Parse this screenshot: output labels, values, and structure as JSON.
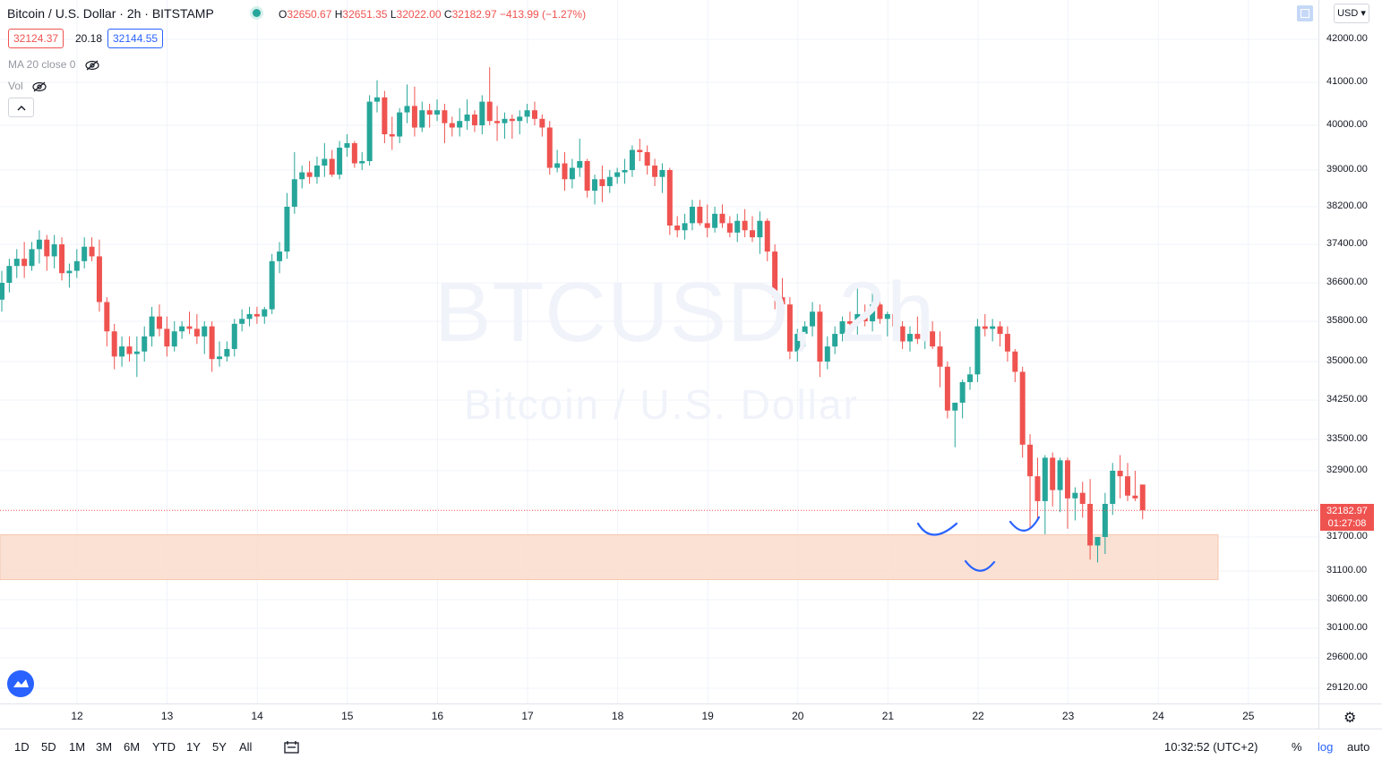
{
  "header": {
    "title": "Bitcoin / U.S. Dollar · 2h · BITSTAMP",
    "ohlc": {
      "o_label": "O",
      "o": "32650.67",
      "h_label": "H",
      "h": "32651.35",
      "l_label": "L",
      "l": "32022.00",
      "c_label": "C",
      "c": "32182.97",
      "change": "−413.99 (−1.27%)"
    },
    "bid": "32124.37",
    "spread": "20.18",
    "ask": "32144.55",
    "indicator_ma": "MA 20 close 0",
    "indicator_vol": "Vol",
    "collapse_icon": "chevron-up-icon",
    "currency": "USD"
  },
  "watermark": {
    "symbol": "BTCUSD, 2h",
    "name": "Bitcoin / U.S. Dollar"
  },
  "bottom_bar": {
    "ranges": [
      "1D",
      "5D",
      "1M",
      "3M",
      "6M",
      "YTD",
      "1Y",
      "5Y",
      "All"
    ],
    "clock": "10:32:52 (UTC+2)",
    "percent": "%",
    "log": "log",
    "auto": "auto"
  },
  "colors": {
    "up": "#26a69a",
    "down": "#ef5350",
    "zone": "#f9dccb",
    "annotation": "#2962ff",
    "accent": "#2962ff"
  },
  "chart_data": {
    "type": "candlestick",
    "symbol": "BTCUSD",
    "interval": "2h",
    "y_ticks": [
      42000,
      41000,
      40000,
      39000,
      38200,
      37400,
      36600,
      35800,
      35000,
      34250,
      33500,
      32900,
      31700,
      31100,
      30600,
      30100,
      29600,
      29120
    ],
    "y_tick_labels": [
      "42000.00",
      "41000.00",
      "40000.00",
      "39000.00",
      "38200.00",
      "37400.00",
      "36600.00",
      "35800.00",
      "35000.00",
      "34250.00",
      "33500.00",
      "32900.00",
      "31700.00",
      "31100.00",
      "30600.00",
      "30100.00",
      "29600.00",
      "29120.00"
    ],
    "x_tick_labels": [
      "12",
      "13",
      "14",
      "15",
      "16",
      "17",
      "18",
      "19",
      "20",
      "21",
      "22",
      "23",
      "24",
      "25"
    ],
    "current_price": "32182.97",
    "countdown": "01:27:08",
    "support_zone": [
      30950,
      31740
    ],
    "candles": [
      [
        36250,
        36850,
        36000,
        36600
      ],
      [
        36600,
        37100,
        36400,
        36950
      ],
      [
        36950,
        37300,
        36700,
        37100
      ],
      [
        37100,
        37450,
        36700,
        36950
      ],
      [
        36950,
        37450,
        36850,
        37300
      ],
      [
        37300,
        37700,
        37000,
        37500
      ],
      [
        37500,
        37600,
        36850,
        37150
      ],
      [
        37150,
        37600,
        36900,
        37400
      ],
      [
        37400,
        37550,
        36650,
        36800
      ],
      [
        36800,
        37000,
        36500,
        36850
      ],
      [
        36850,
        37300,
        36700,
        37050
      ],
      [
        37050,
        37550,
        36900,
        37350
      ],
      [
        37350,
        37550,
        37050,
        37150
      ],
      [
        37150,
        37500,
        36000,
        36200
      ],
      [
        36200,
        36300,
        35300,
        35600
      ],
      [
        35600,
        35750,
        34850,
        35100
      ],
      [
        35100,
        35500,
        34900,
        35300
      ],
      [
        35300,
        35500,
        35000,
        35150
      ],
      [
        35150,
        35500,
        34700,
        35200
      ],
      [
        35200,
        35700,
        35000,
        35500
      ],
      [
        35500,
        36100,
        35300,
        35900
      ],
      [
        35900,
        36150,
        35500,
        35650
      ],
      [
        35650,
        35900,
        35100,
        35300
      ],
      [
        35300,
        35800,
        35200,
        35600
      ],
      [
        35600,
        35800,
        35450,
        35700
      ],
      [
        35700,
        36000,
        35550,
        35650
      ],
      [
        35650,
        35950,
        35350,
        35500
      ],
      [
        35500,
        35800,
        35150,
        35700
      ],
      [
        35700,
        35800,
        34800,
        35050
      ],
      [
        35050,
        35400,
        34900,
        35100
      ],
      [
        35100,
        35400,
        35000,
        35250
      ],
      [
        35250,
        35850,
        35100,
        35750
      ],
      [
        35750,
        36050,
        35600,
        35850
      ],
      [
        35850,
        36100,
        35700,
        35950
      ],
      [
        35950,
        36100,
        35750,
        35900
      ],
      [
        35900,
        36100,
        35750,
        36050
      ],
      [
        36050,
        37200,
        35950,
        37050
      ],
      [
        37050,
        37450,
        36800,
        37250
      ],
      [
        37250,
        38500,
        37100,
        38200
      ],
      [
        38200,
        39400,
        38050,
        38800
      ],
      [
        38800,
        39100,
        38600,
        38950
      ],
      [
        38950,
        39200,
        38700,
        38850
      ],
      [
        38850,
        39300,
        38700,
        39100
      ],
      [
        39100,
        39600,
        38850,
        39250
      ],
      [
        39250,
        39450,
        38850,
        38900
      ],
      [
        38900,
        39650,
        38800,
        39500
      ],
      [
        39500,
        39800,
        39300,
        39600
      ],
      [
        39600,
        39650,
        39050,
        39150
      ],
      [
        39150,
        39400,
        39000,
        39200
      ],
      [
        39200,
        40700,
        39100,
        40550
      ],
      [
        40550,
        41050,
        40300,
        40650
      ],
      [
        40650,
        40800,
        39600,
        39800
      ],
      [
        39800,
        40200,
        39450,
        39750
      ],
      [
        39750,
        40400,
        39600,
        40300
      ],
      [
        40300,
        40950,
        40050,
        40450
      ],
      [
        40450,
        40900,
        39750,
        39950
      ],
      [
        39950,
        40550,
        39850,
        40350
      ],
      [
        40350,
        40500,
        39950,
        40250
      ],
      [
        40250,
        40600,
        40100,
        40350
      ],
      [
        40350,
        40500,
        39600,
        40050
      ],
      [
        40050,
        40200,
        39750,
        39950
      ],
      [
        39950,
        40400,
        39750,
        40100
      ],
      [
        40100,
        40600,
        39900,
        40250
      ],
      [
        40250,
        40350,
        39850,
        40000
      ],
      [
        40000,
        40700,
        39800,
        40550
      ],
      [
        40550,
        41350,
        40000,
        40100
      ],
      [
        40100,
        40450,
        39650,
        40050
      ],
      [
        40050,
        40300,
        39700,
        40150
      ],
      [
        40150,
        40250,
        39700,
        40100
      ],
      [
        40100,
        40350,
        39800,
        40200
      ],
      [
        40200,
        40500,
        40050,
        40350
      ],
      [
        40350,
        40550,
        40000,
        40150
      ],
      [
        40150,
        40250,
        39750,
        39950
      ],
      [
        39950,
        40100,
        38900,
        39050
      ],
      [
        39050,
        39450,
        38950,
        39150
      ],
      [
        39150,
        39400,
        38550,
        38800
      ],
      [
        38800,
        39250,
        38600,
        39050
      ],
      [
        39050,
        39700,
        38850,
        39200
      ],
      [
        39200,
        39250,
        38400,
        38550
      ],
      [
        38550,
        38900,
        38250,
        38800
      ],
      [
        38800,
        39100,
        38300,
        38650
      ],
      [
        38650,
        39000,
        38500,
        38850
      ],
      [
        38850,
        39050,
        38700,
        38950
      ],
      [
        38950,
        39250,
        38700,
        39000
      ],
      [
        39000,
        39550,
        38850,
        39450
      ],
      [
        39450,
        39700,
        39200,
        39400
      ],
      [
        39400,
        39550,
        38900,
        39100
      ],
      [
        39100,
        39250,
        38650,
        38850
      ],
      [
        38850,
        39150,
        38500,
        39000
      ],
      [
        39000,
        39050,
        37600,
        37800
      ],
      [
        37800,
        38000,
        37550,
        37700
      ],
      [
        37700,
        38050,
        37500,
        37850
      ],
      [
        37850,
        38350,
        37700,
        38200
      ],
      [
        38200,
        38350,
        37800,
        37850
      ],
      [
        37850,
        38250,
        37550,
        37750
      ],
      [
        37750,
        38200,
        37650,
        38050
      ],
      [
        38050,
        38250,
        37750,
        37850
      ],
      [
        37850,
        38000,
        37550,
        37650
      ],
      [
        37650,
        38050,
        37450,
        37900
      ],
      [
        37900,
        38150,
        37550,
        37700
      ],
      [
        37700,
        38000,
        37450,
        37550
      ],
      [
        37550,
        38100,
        37200,
        37900
      ],
      [
        37900,
        37950,
        37050,
        37250
      ],
      [
        37250,
        37400,
        36050,
        36300
      ],
      [
        36300,
        36700,
        36100,
        36150
      ],
      [
        36150,
        36300,
        35050,
        35200
      ],
      [
        35200,
        35650,
        35000,
        35550
      ],
      [
        35550,
        35800,
        35300,
        35700
      ],
      [
        35700,
        36200,
        35500,
        36000
      ],
      [
        36000,
        36150,
        34700,
        35000
      ],
      [
        35000,
        35500,
        34850,
        35300
      ],
      [
        35300,
        35700,
        35150,
        35550
      ],
      [
        35550,
        35900,
        35400,
        35800
      ],
      [
        35800,
        36000,
        35600,
        35750
      ],
      [
        35750,
        36500,
        35500,
        35950
      ],
      [
        35950,
        36150,
        35700,
        35800
      ],
      [
        35800,
        36450,
        35600,
        36150
      ],
      [
        36150,
        36300,
        35750,
        35850
      ],
      [
        35850,
        36000,
        35500,
        35950
      ],
      [
        35950,
        36100,
        35550,
        35700
      ],
      [
        35700,
        35800,
        35250,
        35400
      ],
      [
        35400,
        35700,
        35200,
        35550
      ],
      [
        35550,
        35900,
        35350,
        35450
      ],
      [
        35450,
        35700,
        35250,
        35600
      ],
      [
        35600,
        35800,
        35250,
        35300
      ],
      [
        35300,
        35600,
        34500,
        34900
      ],
      [
        34900,
        35000,
        33900,
        34050
      ],
      [
        34050,
        34200,
        33350,
        34200
      ],
      [
        34200,
        34650,
        33900,
        34600
      ],
      [
        34600,
        34900,
        34450,
        34750
      ],
      [
        34750,
        35850,
        34600,
        35700
      ],
      [
        35700,
        35950,
        35500,
        35650
      ],
      [
        35650,
        35850,
        35400,
        35700
      ],
      [
        35700,
        35800,
        35300,
        35550
      ],
      [
        35550,
        35700,
        35000,
        35200
      ],
      [
        35200,
        35250,
        34600,
        34800
      ],
      [
        34800,
        34900,
        33150,
        33400
      ],
      [
        33400,
        33600,
        31850,
        32800
      ],
      [
        32800,
        33150,
        32000,
        32350
      ],
      [
        32350,
        33200,
        31750,
        33150
      ],
      [
        33150,
        33250,
        32250,
        32550
      ],
      [
        32550,
        33150,
        32150,
        33100
      ],
      [
        33100,
        33150,
        31850,
        32400
      ],
      [
        32400,
        32600,
        32000,
        32500
      ],
      [
        32500,
        32700,
        32050,
        32300
      ],
      [
        32300,
        32750,
        31300,
        31550
      ],
      [
        31550,
        31700,
        31250,
        31700
      ],
      [
        31700,
        32500,
        31400,
        32300
      ],
      [
        32300,
        33050,
        32100,
        32900
      ],
      [
        32900,
        33200,
        32400,
        32800
      ],
      [
        32800,
        33050,
        32350,
        32450
      ],
      [
        32450,
        32900,
        32350,
        32400
      ],
      [
        32650,
        32651,
        32022,
        32183
      ]
    ]
  }
}
